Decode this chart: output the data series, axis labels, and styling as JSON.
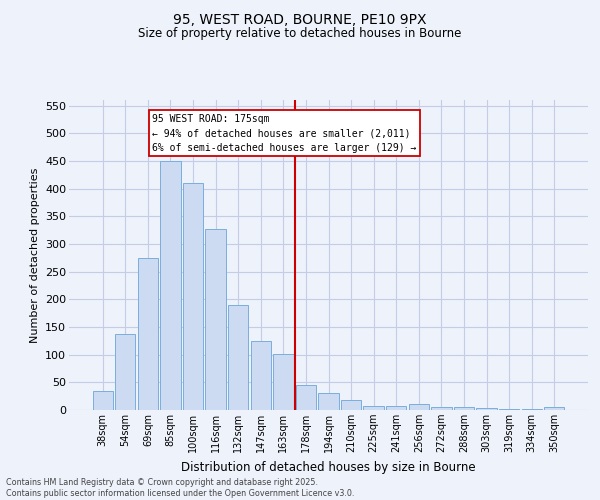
{
  "title": "95, WEST ROAD, BOURNE, PE10 9PX",
  "subtitle": "Size of property relative to detached houses in Bourne",
  "xlabel": "Distribution of detached houses by size in Bourne",
  "ylabel": "Number of detached properties",
  "categories": [
    "38sqm",
    "54sqm",
    "69sqm",
    "85sqm",
    "100sqm",
    "116sqm",
    "132sqm",
    "147sqm",
    "163sqm",
    "178sqm",
    "194sqm",
    "210sqm",
    "225sqm",
    "241sqm",
    "256sqm",
    "272sqm",
    "288sqm",
    "303sqm",
    "319sqm",
    "334sqm",
    "350sqm"
  ],
  "values": [
    35,
    137,
    275,
    450,
    410,
    327,
    190,
    125,
    102,
    46,
    30,
    18,
    7,
    7,
    10,
    5,
    5,
    4,
    2,
    2,
    6
  ],
  "bar_color": "#ccdaf2",
  "bar_edge_color": "#7aaedd",
  "vline_idx": 8.5,
  "vline_label": "95 WEST ROAD: 175sqm",
  "annotation_line1": "← 94% of detached houses are smaller (2,011)",
  "annotation_line2": "6% of semi-detached houses are larger (129) →",
  "vline_color": "#cc0000",
  "box_edge_color": "#cc0000",
  "ylim": [
    0,
    560
  ],
  "yticks": [
    0,
    50,
    100,
    150,
    200,
    250,
    300,
    350,
    400,
    450,
    500,
    550
  ],
  "footer_line1": "Contains HM Land Registry data © Crown copyright and database right 2025.",
  "footer_line2": "Contains public sector information licensed under the Open Government Licence v3.0.",
  "background_color": "#eef2fb",
  "grid_color": "#c5cde6"
}
